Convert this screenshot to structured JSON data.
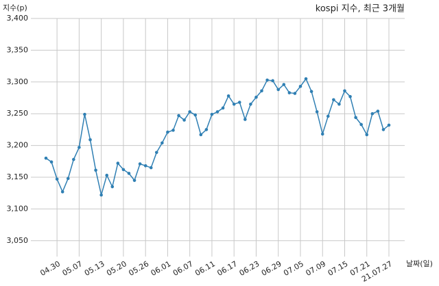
{
  "chart_data": {
    "type": "line",
    "title": "kospi 지수, 최근 3개월",
    "y_label": "지수(p)",
    "x_label": "날짜(일)",
    "categories": [
      null,
      null,
      "04.30",
      null,
      null,
      null,
      "05.07",
      null,
      null,
      null,
      "05.13",
      null,
      null,
      null,
      "05.20",
      null,
      null,
      null,
      "05.26",
      null,
      null,
      null,
      "06.01",
      null,
      null,
      null,
      "06.07",
      null,
      null,
      null,
      "06.11",
      null,
      null,
      null,
      "06.17",
      null,
      null,
      null,
      "06.23",
      null,
      null,
      null,
      "06.29",
      null,
      null,
      null,
      "07.05",
      null,
      null,
      null,
      "07.09",
      null,
      null,
      null,
      "07.15",
      null,
      null,
      null,
      "07.21",
      null,
      null,
      null,
      "21.07.27"
    ],
    "series": [
      {
        "name": "kospi",
        "color": "#2f7fb3",
        "values": [
          3180,
          3174,
          3147,
          3127,
          3148,
          3178,
          3197,
          3249,
          3209,
          3161,
          3122,
          3153,
          3135,
          3172,
          3162,
          3156,
          3145,
          3171,
          3168,
          3165,
          3189,
          3204,
          3221,
          3224,
          3247,
          3240,
          3253,
          3248,
          3217,
          3225,
          3249,
          3253,
          3259,
          3278,
          3265,
          3268,
          3241,
          3265,
          3276,
          3286,
          3303,
          3302,
          3288,
          3296,
          3283,
          3282,
          3293,
          3305,
          3285,
          3253,
          3218,
          3246,
          3272,
          3265,
          3286,
          3277,
          3244,
          3233,
          3217,
          3250,
          3254,
          3225,
          3232
        ]
      }
    ],
    "ylim": [
      3025,
      3400
    ],
    "yticks": [
      {
        "value": 3050,
        "label": "3,050"
      },
      {
        "value": 3100,
        "label": "3,100"
      },
      {
        "value": 3150,
        "label": "3,150"
      },
      {
        "value": 3200,
        "label": "3,200"
      },
      {
        "value": 3250,
        "label": "3,250"
      },
      {
        "value": 3300,
        "label": "3,300"
      },
      {
        "value": 3350,
        "label": "3,350"
      },
      {
        "value": 3400,
        "label": "3,400"
      }
    ],
    "grid": true
  }
}
